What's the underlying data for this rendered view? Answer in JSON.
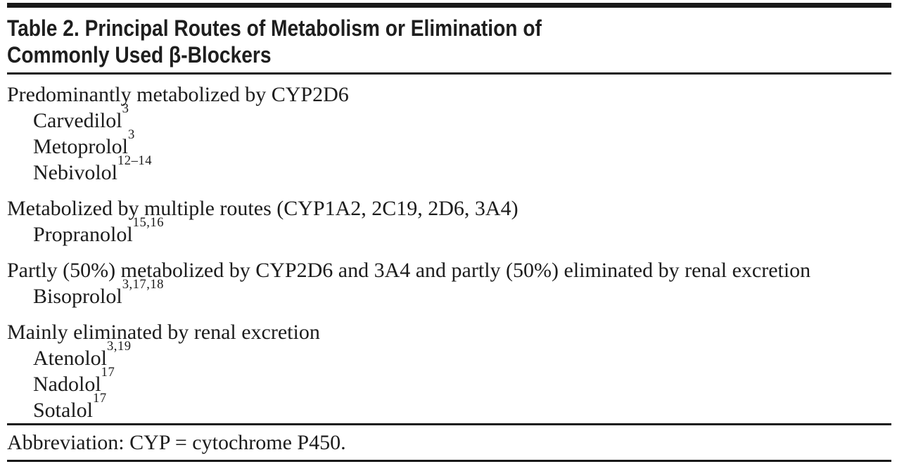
{
  "table": {
    "title_line1": "Table 2. Principal Routes of Metabolism or Elimination of",
    "title_line2": "Commonly Used β-Blockers",
    "sections": [
      {
        "heading": "Predominantly metabolized by CYP2D6",
        "drugs": [
          {
            "name": "Carvedilol",
            "refs": "3"
          },
          {
            "name": "Metoprolol",
            "refs": "3"
          },
          {
            "name": "Nebivolol",
            "refs": "12–14"
          }
        ]
      },
      {
        "heading": "Metabolized by multiple routes (CYP1A2, 2C19, 2D6, 3A4)",
        "drugs": [
          {
            "name": "Propranolol",
            "refs": "15,16"
          }
        ]
      },
      {
        "heading": "Partly (50%) metabolized by CYP2D6 and 3A4 and partly (50%) eliminated by renal excretion",
        "drugs": [
          {
            "name": "Bisoprolol",
            "refs": "3,17,18"
          }
        ]
      },
      {
        "heading": "Mainly eliminated by renal excretion",
        "drugs": [
          {
            "name": "Atenolol",
            "refs": "3,19"
          },
          {
            "name": "Nadolol",
            "refs": "17"
          },
          {
            "name": "Sotalol",
            "refs": "17"
          }
        ]
      }
    ],
    "footnote": "Abbreviation: CYP = cytochrome P450.",
    "colors": {
      "background": "#ffffff",
      "text": "#1c1c1c",
      "rule": "#181818"
    }
  }
}
